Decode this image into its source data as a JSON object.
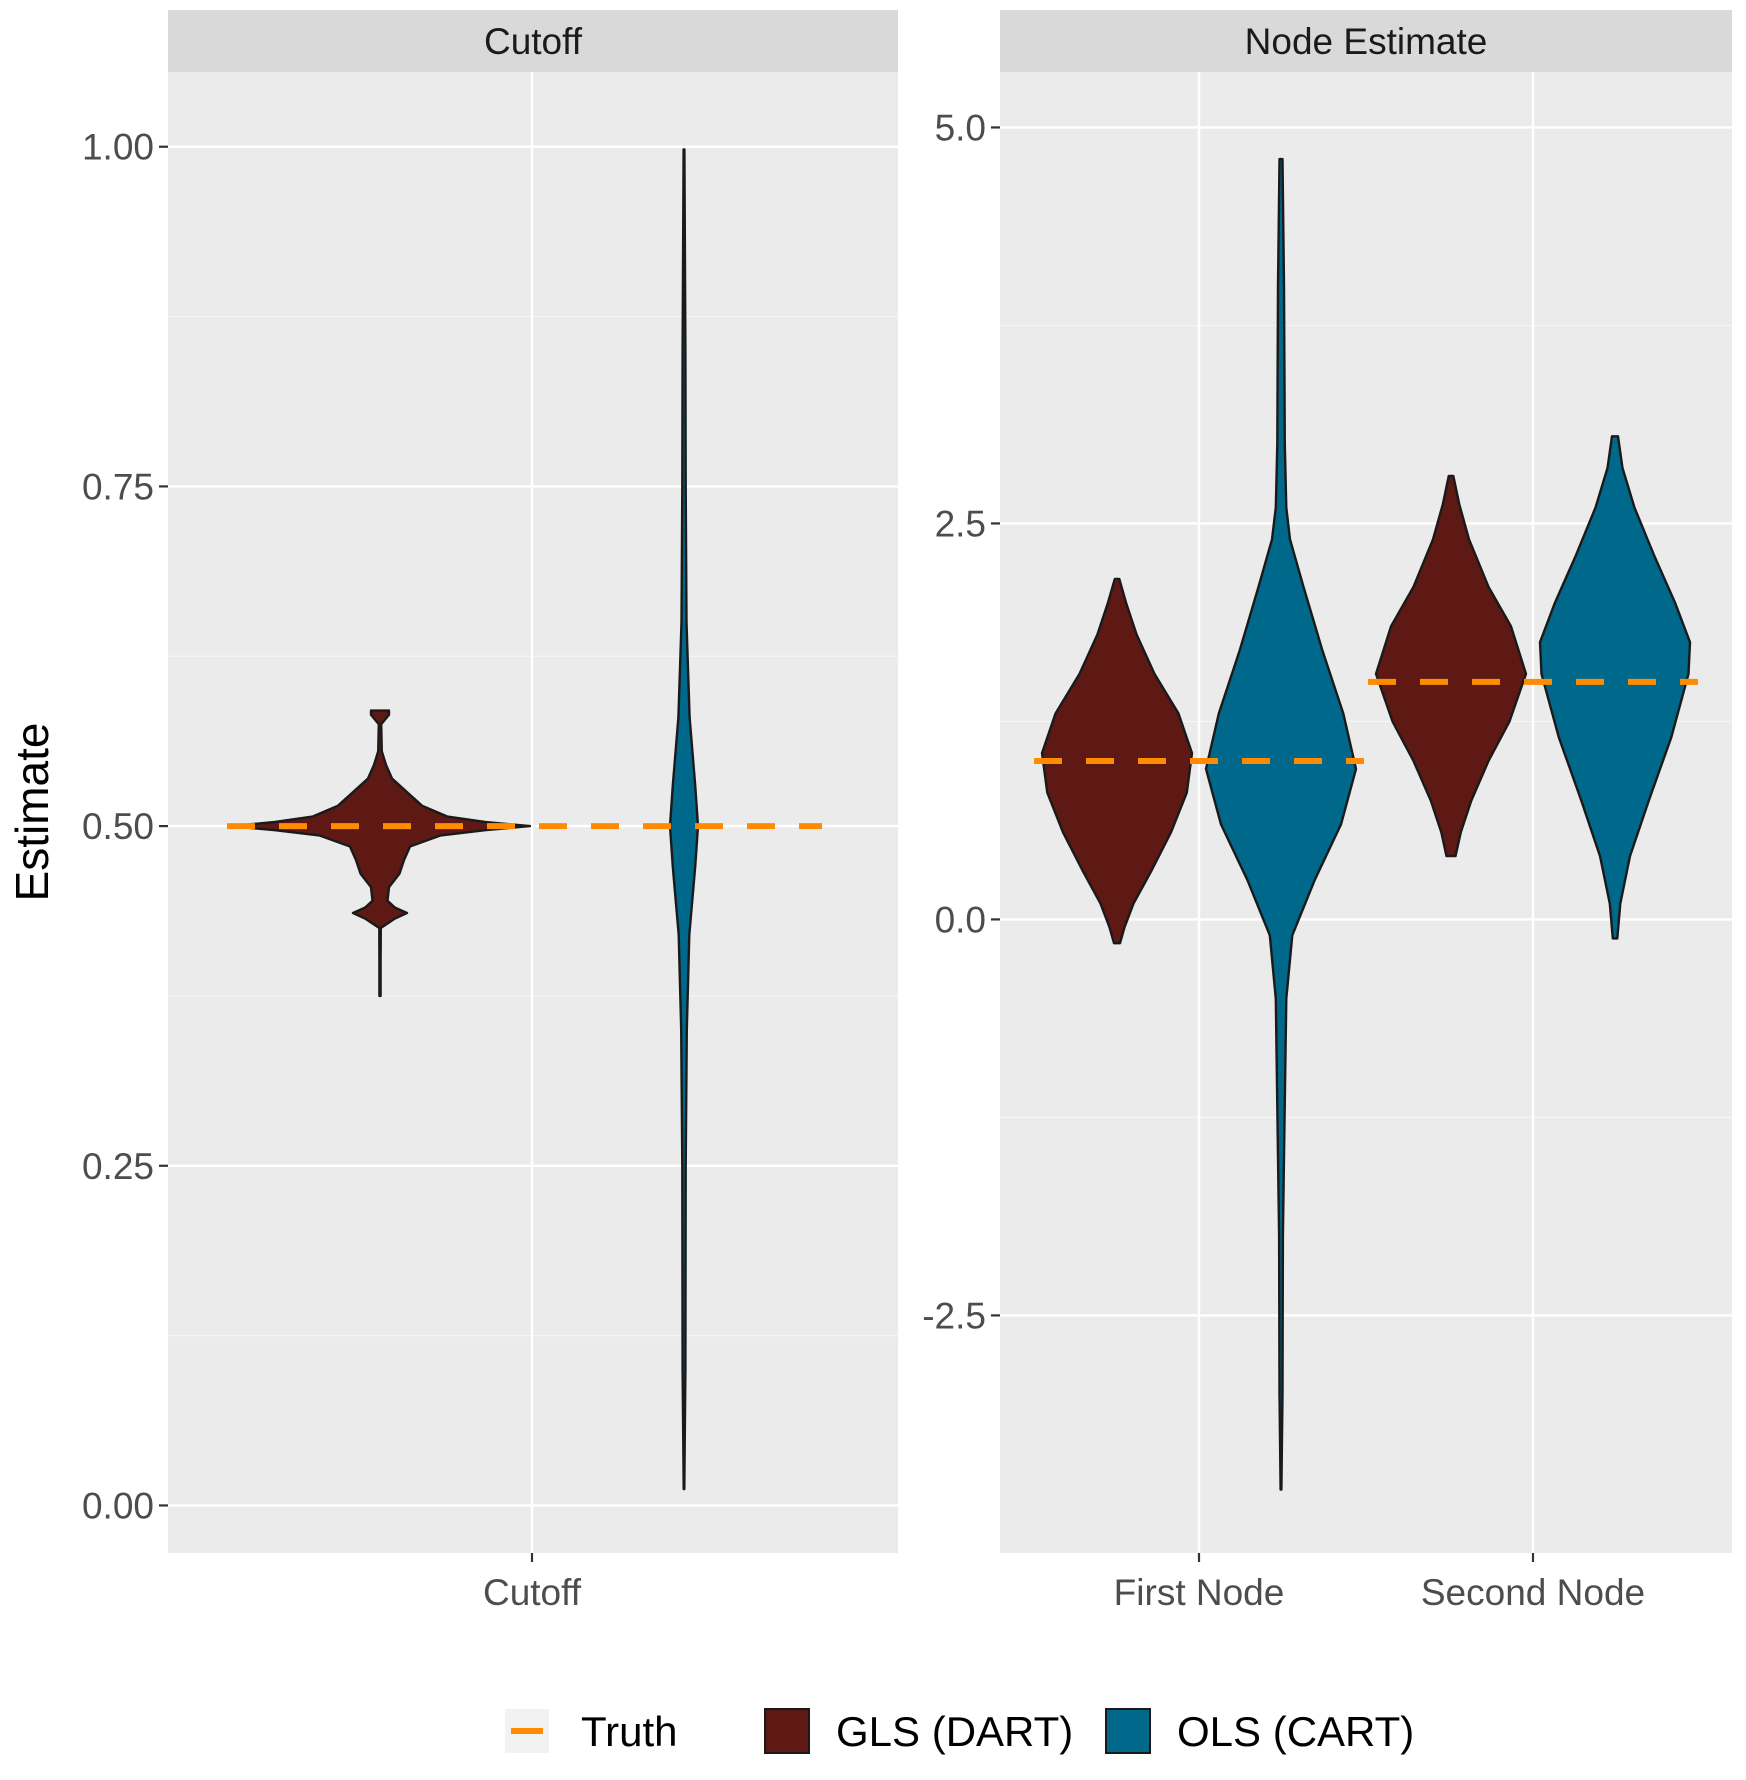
{
  "chart_data": {
    "type": "violin",
    "ylabel": "Estimate",
    "colors": {
      "truth": "#FF8C00",
      "gls": "#5E1914",
      "ols": "#00688B",
      "panel_bg": "#EBEBEB",
      "strip_bg": "#D9D9D9",
      "grid": "#FFFFFF",
      "outline": "#1A1A1A"
    },
    "legend": {
      "position": "bottom",
      "entries": [
        {
          "key": "truth",
          "label": "Truth",
          "kind": "dashed-line"
        },
        {
          "key": "gls",
          "label": "GLS (DART)",
          "kind": "fill"
        },
        {
          "key": "ols",
          "label": "OLS (CART)",
          "kind": "fill"
        }
      ]
    },
    "panels": [
      {
        "id": "cutoff",
        "title": "Cutoff",
        "ylim": [
          -0.035,
          1.055
        ],
        "yticks": [
          0.0,
          0.25,
          0.5,
          0.75,
          1.0
        ],
        "ytick_labels": [
          "0.00",
          "0.25",
          "0.50",
          "0.75",
          "1.00"
        ],
        "categories": [
          "Cutoff"
        ],
        "groups": [
          {
            "category": "Cutoff",
            "truth": 0.5,
            "violins": [
              {
                "series": "gls",
                "min": 0.375,
                "max": 0.585,
                "profile": [
                  [
                    0.375,
                    0.004
                  ],
                  [
                    0.4,
                    0.004
                  ],
                  [
                    0.425,
                    0.005
                  ],
                  [
                    0.432,
                    0.1
                  ],
                  [
                    0.436,
                    0.18
                  ],
                  [
                    0.44,
                    0.1
                  ],
                  [
                    0.445,
                    0.05
                  ],
                  [
                    0.455,
                    0.06
                  ],
                  [
                    0.465,
                    0.13
                  ],
                  [
                    0.475,
                    0.16
                  ],
                  [
                    0.485,
                    0.2
                  ],
                  [
                    0.493,
                    0.4
                  ],
                  [
                    0.497,
                    0.7
                  ],
                  [
                    0.5,
                    1.0
                  ],
                  [
                    0.503,
                    0.7
                  ],
                  [
                    0.507,
                    0.45
                  ],
                  [
                    0.515,
                    0.28
                  ],
                  [
                    0.525,
                    0.18
                  ],
                  [
                    0.535,
                    0.08
                  ],
                  [
                    0.545,
                    0.04
                  ],
                  [
                    0.555,
                    0.012
                  ],
                  [
                    0.575,
                    0.008
                  ],
                  [
                    0.582,
                    0.06
                  ],
                  [
                    0.585,
                    0.06
                  ]
                ]
              },
              {
                "series": "ols",
                "min": 0.012,
                "max": 0.998,
                "profile": [
                  [
                    0.012,
                    0.02
                  ],
                  [
                    0.1,
                    0.1
                  ],
                  [
                    0.25,
                    0.12
                  ],
                  [
                    0.35,
                    0.2
                  ],
                  [
                    0.42,
                    0.38
                  ],
                  [
                    0.47,
                    0.8
                  ],
                  [
                    0.5,
                    1.0
                  ],
                  [
                    0.53,
                    0.8
                  ],
                  [
                    0.58,
                    0.4
                  ],
                  [
                    0.65,
                    0.18
                  ],
                  [
                    0.75,
                    0.12
                  ],
                  [
                    0.85,
                    0.1
                  ],
                  [
                    0.998,
                    0.03
                  ]
                ]
              }
            ]
          }
        ]
      },
      {
        "id": "node",
        "title": "Node Estimate",
        "ylim": [
          -4.0,
          5.35
        ],
        "yticks": [
          -2.5,
          0.0,
          2.5,
          5.0
        ],
        "ytick_labels": [
          "-2.5",
          "0.0",
          "2.5",
          "5.0"
        ],
        "categories": [
          "First Node",
          "Second Node"
        ],
        "groups": [
          {
            "category": "First Node",
            "truth": 1.0,
            "violins": [
              {
                "series": "gls",
                "min": -0.15,
                "max": 2.15,
                "profile": [
                  [
                    -0.15,
                    0.04
                  ],
                  [
                    -0.05,
                    0.1
                  ],
                  [
                    0.1,
                    0.22
                  ],
                  [
                    0.3,
                    0.45
                  ],
                  [
                    0.55,
                    0.72
                  ],
                  [
                    0.8,
                    0.93
                  ],
                  [
                    1.05,
                    1.0
                  ],
                  [
                    1.3,
                    0.82
                  ],
                  [
                    1.55,
                    0.5
                  ],
                  [
                    1.8,
                    0.26
                  ],
                  [
                    2.0,
                    0.12
                  ],
                  [
                    2.15,
                    0.03
                  ]
                ]
              },
              {
                "series": "ols",
                "min": -3.6,
                "max": 4.8,
                "profile": [
                  [
                    -3.6,
                    0.005
                  ],
                  [
                    -3.0,
                    0.02
                  ],
                  [
                    -2.0,
                    0.025
                  ],
                  [
                    -1.5,
                    0.04
                  ],
                  [
                    -0.5,
                    0.07
                  ],
                  [
                    -0.1,
                    0.15
                  ],
                  [
                    0.25,
                    0.45
                  ],
                  [
                    0.6,
                    0.8
                  ],
                  [
                    0.95,
                    1.0
                  ],
                  [
                    1.3,
                    0.83
                  ],
                  [
                    1.7,
                    0.55
                  ],
                  [
                    2.1,
                    0.3
                  ],
                  [
                    2.4,
                    0.12
                  ],
                  [
                    2.6,
                    0.07
                  ],
                  [
                    3.0,
                    0.05
                  ],
                  [
                    4.0,
                    0.04
                  ],
                  [
                    4.8,
                    0.02
                  ]
                ]
              }
            ]
          },
          {
            "category": "Second Node",
            "truth": 1.5,
            "violins": [
              {
                "series": "gls",
                "min": 0.4,
                "max": 2.8,
                "profile": [
                  [
                    0.4,
                    0.06
                  ],
                  [
                    0.55,
                    0.13
                  ],
                  [
                    0.75,
                    0.27
                  ],
                  [
                    1.0,
                    0.5
                  ],
                  [
                    1.25,
                    0.78
                  ],
                  [
                    1.55,
                    1.0
                  ],
                  [
                    1.85,
                    0.8
                  ],
                  [
                    2.1,
                    0.5
                  ],
                  [
                    2.4,
                    0.24
                  ],
                  [
                    2.62,
                    0.11
                  ],
                  [
                    2.8,
                    0.03
                  ]
                ]
              },
              {
                "series": "ols",
                "min": -0.12,
                "max": 3.05,
                "profile": [
                  [
                    -0.12,
                    0.03
                  ],
                  [
                    0.1,
                    0.07
                  ],
                  [
                    0.4,
                    0.2
                  ],
                  [
                    0.75,
                    0.45
                  ],
                  [
                    1.15,
                    0.75
                  ],
                  [
                    1.55,
                    0.98
                  ],
                  [
                    1.75,
                    1.0
                  ],
                  [
                    2.0,
                    0.8
                  ],
                  [
                    2.3,
                    0.52
                  ],
                  [
                    2.6,
                    0.26
                  ],
                  [
                    2.85,
                    0.1
                  ],
                  [
                    3.05,
                    0.04
                  ]
                ]
              }
            ]
          }
        ]
      }
    ]
  }
}
